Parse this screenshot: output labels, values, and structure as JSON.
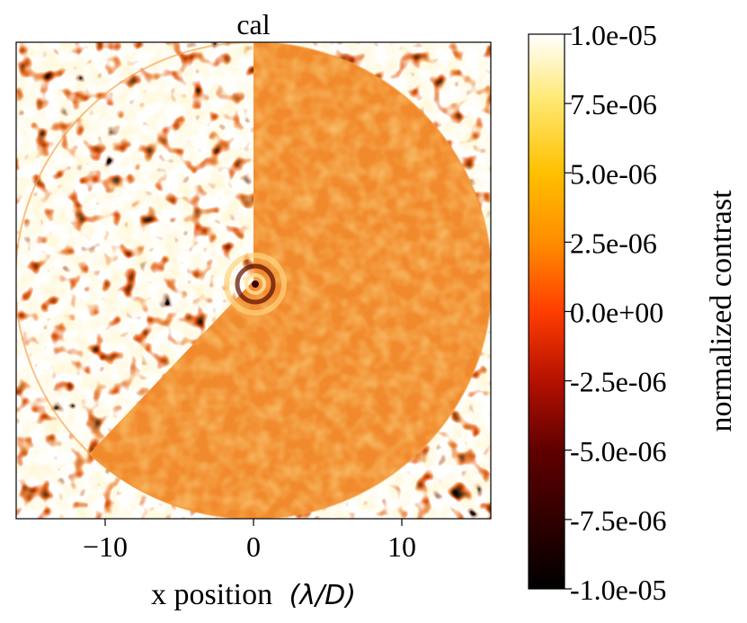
{
  "chart_data": {
    "type": "heatmap",
    "title": "cal",
    "xlabel": "x position",
    "xlabel_math": "(λ/D)",
    "ylabel": "",
    "xlim": [
      -16,
      16
    ],
    "ylim": [
      -16,
      16
    ],
    "x_ticks": [
      {
        "value": -10,
        "label": "−10"
      },
      {
        "value": 0,
        "label": "0"
      },
      {
        "value": 10,
        "label": "10"
      }
    ],
    "y_ticks": [],
    "colorbar": {
      "label": "normalized contrast",
      "range": [
        -1e-05,
        1e-05
      ],
      "colormap": "afmhot",
      "ticks": [
        {
          "value": 1e-05,
          "label": "1.0e-05"
        },
        {
          "value": 7.5e-06,
          "label": "7.5e-06"
        },
        {
          "value": 5e-06,
          "label": "5.0e-06"
        },
        {
          "value": 2.5e-06,
          "label": "2.5e-06"
        },
        {
          "value": 0,
          "label": "0.0e+00"
        },
        {
          "value": -2.5e-06,
          "label": "-2.5e-06"
        },
        {
          "value": -5e-06,
          "label": "-5.0e-06"
        },
        {
          "value": -7.5e-06,
          "label": "-7.5e-06"
        },
        {
          "value": -1e-05,
          "label": "-1.0e-05"
        }
      ]
    },
    "features": {
      "dark_hole_radius": 16,
      "dark_hole_center": [
        0.5,
        0.5
      ],
      "suppressed_region": "right half and lower-left arc inside the control radius",
      "central_rings": true
    },
    "colors": {
      "background_level": "#f28a2a",
      "bright": "#ffffff",
      "dark": "#000000",
      "mid_red": "#c81800"
    }
  }
}
